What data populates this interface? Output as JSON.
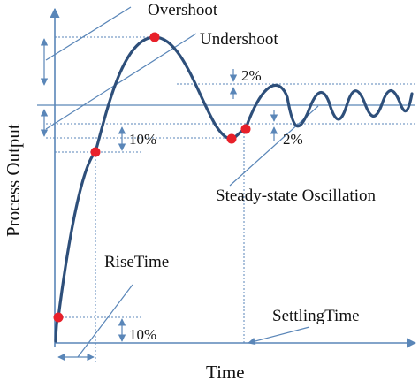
{
  "diagram": {
    "axis_labels": {
      "y": "Process Output",
      "x": "Time"
    },
    "annotations": {
      "overshoot": "Overshoot",
      "undershoot": "Undershoot",
      "band_upper": "2%",
      "band_lower": "2%",
      "ten_percent_top": "10%",
      "ten_percent_bottom": "10%",
      "steady_state_oscillation": "Steady-state Oscillation",
      "rise_time": "RiseTime",
      "settling_time": "SettlingTime"
    },
    "colors": {
      "curve": "#2e4f7a",
      "axis": "#5a86b8",
      "guides": "#5a86b8",
      "marker": "#e8202a",
      "text": "#111111"
    }
  }
}
